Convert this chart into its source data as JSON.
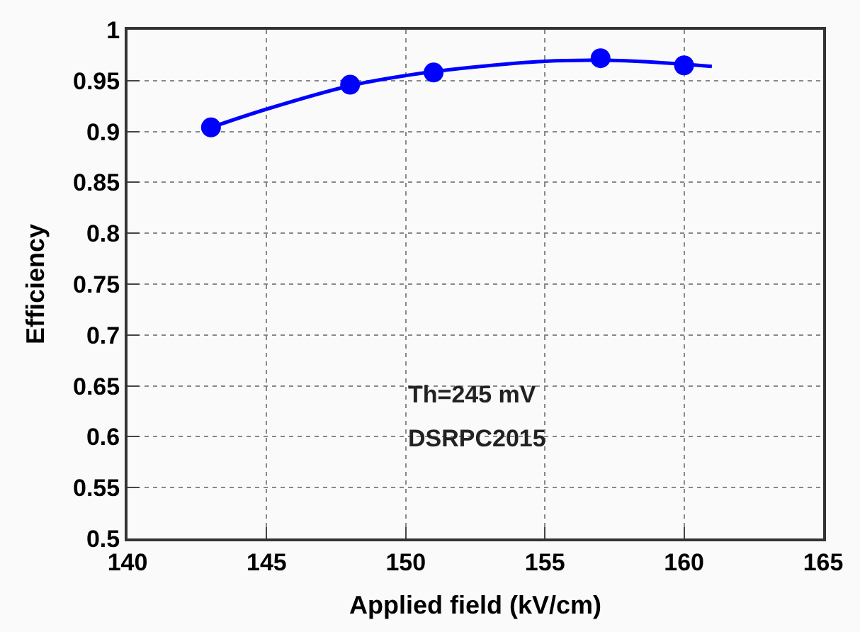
{
  "chart_data": {
    "type": "scatter",
    "xlabel": "Applied field (kV/cm)",
    "ylabel": "Efficiency",
    "xlim": [
      140,
      165
    ],
    "xticks": [
      140,
      145,
      150,
      155,
      160,
      165
    ],
    "ylim": [
      0.5,
      1
    ],
    "yticks": [
      0.5,
      0.55,
      0.6,
      0.65,
      0.7,
      0.75,
      0.8,
      0.85,
      0.9,
      0.95,
      1
    ],
    "grid": true,
    "series": [
      {
        "marker": "circle",
        "color": "#0000ff",
        "x": [
          143,
          148,
          151,
          157,
          160
        ],
        "values": [
          0.904,
          0.946,
          0.958,
          0.972,
          0.965
        ]
      },
      {
        "type": "line",
        "color": "#0000ff",
        "line_style": "solid",
        "x": [
          143,
          145,
          148,
          150,
          152,
          155,
          157,
          159,
          161
        ],
        "values": [
          0.904,
          0.922,
          0.945,
          0.955,
          0.962,
          0.969,
          0.97,
          0.968,
          0.964
        ]
      }
    ],
    "annotations": [
      "Th=245 mV",
      "DSRPC2015"
    ]
  }
}
